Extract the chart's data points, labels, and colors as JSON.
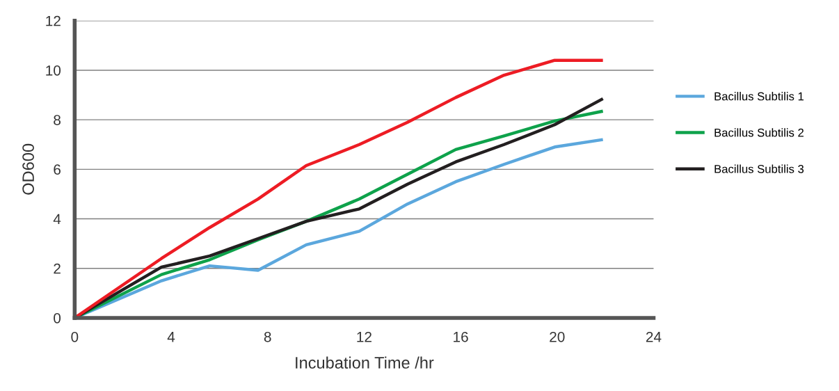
{
  "chart_data": {
    "type": "line",
    "xlabel": "Incubation Time /hr",
    "ylabel": "OD600",
    "x": [
      0,
      3.6,
      5.6,
      7.6,
      9.6,
      11.8,
      13.8,
      15.8,
      17.8,
      19.9,
      21.9
    ],
    "series": [
      {
        "name": "Bacillus Subtilis 1",
        "color": "#5ba7dd",
        "values": [
          0,
          1.5,
          2.1,
          1.92,
          2.95,
          3.5,
          4.6,
          5.5,
          6.2,
          6.9,
          7.2
        ]
      },
      {
        "name": "Bacillus Subtilis 2",
        "color": "#0ea24b",
        "values": [
          0,
          1.75,
          2.35,
          3.15,
          3.9,
          4.8,
          5.8,
          6.8,
          7.35,
          7.95,
          8.35
        ]
      },
      {
        "name": "Bacillus Subtilis 3",
        "color": "#231f20",
        "values": [
          0,
          2.05,
          2.5,
          3.2,
          3.9,
          4.4,
          5.4,
          6.3,
          7.0,
          7.8,
          8.85
        ]
      },
      {
        "color": "#ed1c24",
        "values": [
          0,
          2.4,
          3.65,
          4.8,
          6.15,
          7.0,
          7.9,
          8.9,
          9.8,
          10.4,
          10.4
        ]
      }
    ],
    "xlim": [
      0,
      24
    ],
    "xticks": [
      0,
      4,
      8,
      12,
      16,
      20,
      24
    ],
    "ylim": [
      0,
      12
    ],
    "yticks": [
      0,
      2,
      4,
      6,
      8,
      10,
      12
    ],
    "grid": "y",
    "legend": "right",
    "marker": "none",
    "line_style": "solid"
  }
}
